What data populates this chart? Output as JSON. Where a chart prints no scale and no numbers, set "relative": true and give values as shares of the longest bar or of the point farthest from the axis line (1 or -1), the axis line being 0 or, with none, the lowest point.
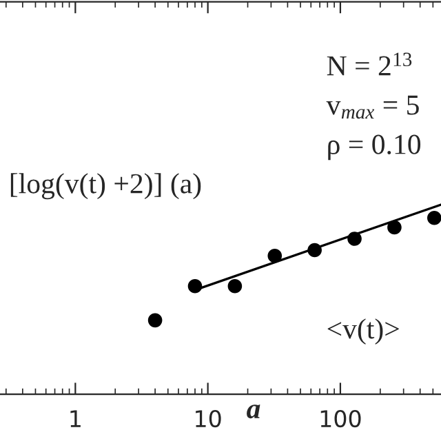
{
  "chart_data": {
    "type": "scatter",
    "relative": true,
    "log": "x",
    "xlim": [
      0.27,
      575
    ],
    "xticks": [
      1,
      10,
      100
    ],
    "xlabel": "a",
    "grid": false,
    "annotations": [
      "[log(v(t) +2)] (a)",
      "N = 2$^{13}$",
      "v$_{max}$ = 5",
      "ρ = 0.10",
      "<v(t)>"
    ],
    "series": [
      {
        "marker": "circle",
        "color": "#000000",
        "x": [
          4,
          8,
          16,
          32,
          64,
          128,
          256,
          512
        ],
        "values": [
          0.39,
          0.57,
          0.57,
          0.73,
          0.76,
          0.82,
          0.88,
          0.93
        ]
      },
      {
        "type": "line",
        "marker": "none",
        "color": "#000000",
        "x": [
          8,
          575
        ],
        "values": [
          0.55,
          1.0
        ]
      }
    ]
  }
}
